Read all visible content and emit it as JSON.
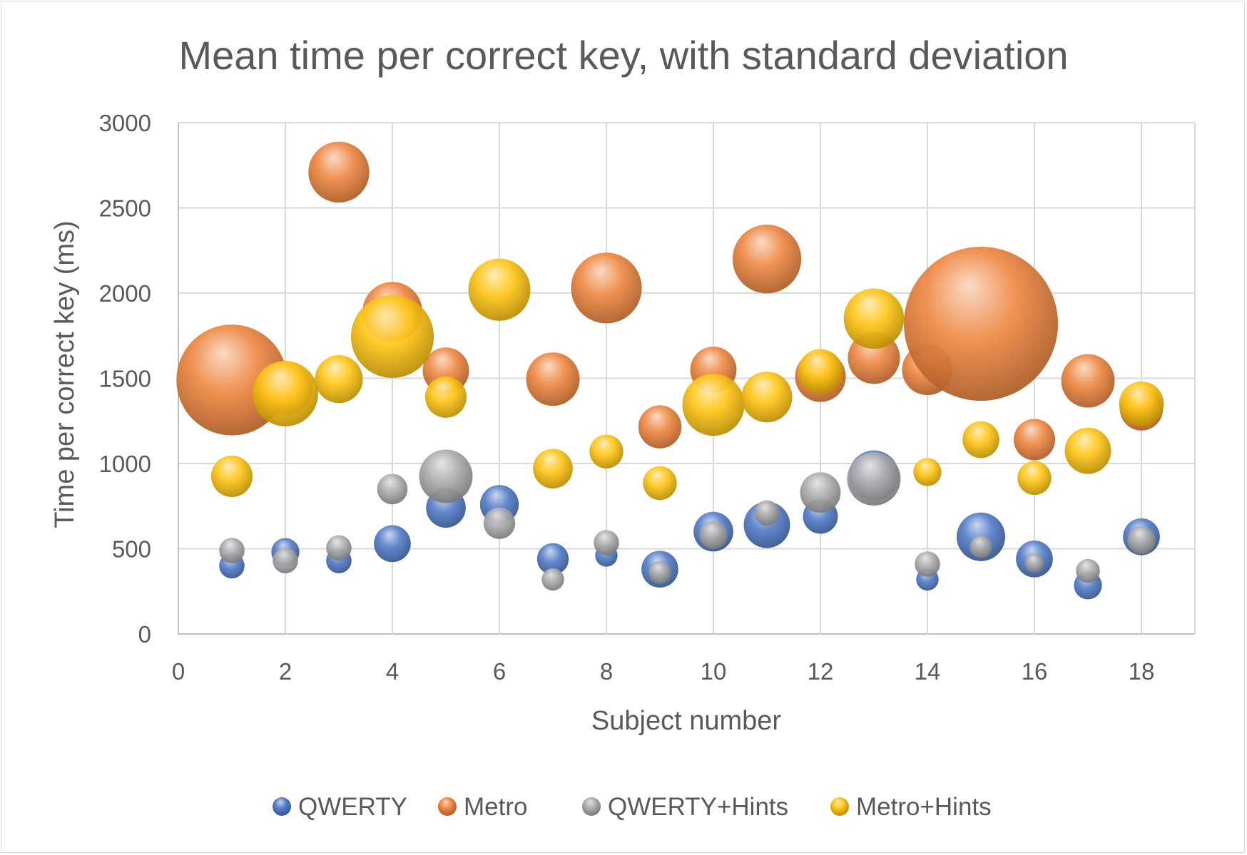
{
  "chart_data": {
    "type": "bubble",
    "title": "Mean time per correct key, with standard deviation",
    "xlabel": "Subject number",
    "ylabel": "Time per correct key (ms)",
    "xlim": [
      0,
      19
    ],
    "ylim": [
      0,
      3000
    ],
    "x_ticks": [
      0,
      2,
      4,
      6,
      8,
      10,
      12,
      14,
      16,
      18
    ],
    "y_ticks": [
      0,
      500,
      1000,
      1500,
      2000,
      2500,
      3000
    ],
    "grid": true,
    "legend_position": "bottom",
    "series": [
      {
        "name": "QWERTY",
        "color": "#4472c4",
        "points": [
          {
            "x": 1,
            "y": 400,
            "sd": 45
          },
          {
            "x": 2,
            "y": 480,
            "sd": 55
          },
          {
            "x": 3,
            "y": 430,
            "sd": 45
          },
          {
            "x": 4,
            "y": 530,
            "sd": 95
          },
          {
            "x": 5,
            "y": 740,
            "sd": 110
          },
          {
            "x": 6,
            "y": 760,
            "sd": 105
          },
          {
            "x": 7,
            "y": 440,
            "sd": 70
          },
          {
            "x": 8,
            "y": 460,
            "sd": 35
          },
          {
            "x": 9,
            "y": 380,
            "sd": 95
          },
          {
            "x": 10,
            "y": 600,
            "sd": 110
          },
          {
            "x": 11,
            "y": 640,
            "sd": 150
          },
          {
            "x": 12,
            "y": 690,
            "sd": 85
          },
          {
            "x": 13,
            "y": 930,
            "sd": 175
          },
          {
            "x": 14,
            "y": 320,
            "sd": 35
          },
          {
            "x": 15,
            "y": 570,
            "sd": 165
          },
          {
            "x": 16,
            "y": 440,
            "sd": 95
          },
          {
            "x": 17,
            "y": 285,
            "sd": 55
          },
          {
            "x": 18,
            "y": 570,
            "sd": 95
          }
        ]
      },
      {
        "name": "Metro",
        "color": "#ed7d31",
        "points": [
          {
            "x": 1,
            "y": 1490,
            "sd": 860
          },
          {
            "x": 2,
            "y": 1440,
            "sd": 200
          },
          {
            "x": 3,
            "y": 2710,
            "sd": 260
          },
          {
            "x": 4,
            "y": 1890,
            "sd": 250
          },
          {
            "x": 5,
            "y": 1545,
            "sd": 150
          },
          {
            "x": 7,
            "y": 1495,
            "sd": 200
          },
          {
            "x": 8,
            "y": 2030,
            "sd": 350
          },
          {
            "x": 9,
            "y": 1215,
            "sd": 130
          },
          {
            "x": 10,
            "y": 1550,
            "sd": 150
          },
          {
            "x": 11,
            "y": 2200,
            "sd": 330
          },
          {
            "x": 12,
            "y": 1510,
            "sd": 180
          },
          {
            "x": 13,
            "y": 1620,
            "sd": 190
          },
          {
            "x": 14,
            "y": 1550,
            "sd": 180
          },
          {
            "x": 15,
            "y": 1820,
            "sd": 1660
          },
          {
            "x": 16,
            "y": 1140,
            "sd": 120
          },
          {
            "x": 17,
            "y": 1485,
            "sd": 200
          },
          {
            "x": 18,
            "y": 1320,
            "sd": 130
          }
        ]
      },
      {
        "name": "QWERTY+Hints",
        "color": "#a5a5a5",
        "points": [
          {
            "x": 1,
            "y": 490,
            "sd": 45
          },
          {
            "x": 2,
            "y": 430,
            "sd": 45
          },
          {
            "x": 3,
            "y": 505,
            "sd": 45
          },
          {
            "x": 4,
            "y": 850,
            "sd": 65
          },
          {
            "x": 5,
            "y": 925,
            "sd": 200
          },
          {
            "x": 6,
            "y": 650,
            "sd": 70
          },
          {
            "x": 7,
            "y": 320,
            "sd": 35
          },
          {
            "x": 8,
            "y": 535,
            "sd": 45
          },
          {
            "x": 9,
            "y": 360,
            "sd": 35
          },
          {
            "x": 10,
            "y": 580,
            "sd": 55
          },
          {
            "x": 11,
            "y": 710,
            "sd": 45
          },
          {
            "x": 12,
            "y": 830,
            "sd": 115
          },
          {
            "x": 13,
            "y": 910,
            "sd": 200
          },
          {
            "x": 14,
            "y": 410,
            "sd": 45
          },
          {
            "x": 15,
            "y": 510,
            "sd": 35
          },
          {
            "x": 16,
            "y": 415,
            "sd": 25
          },
          {
            "x": 17,
            "y": 370,
            "sd": 40
          },
          {
            "x": 18,
            "y": 550,
            "sd": 55
          }
        ]
      },
      {
        "name": "Metro+Hints",
        "color": "#ffc000",
        "points": [
          {
            "x": 1,
            "y": 925,
            "sd": 120
          },
          {
            "x": 2,
            "y": 1410,
            "sd": 300
          },
          {
            "x": 3,
            "y": 1495,
            "sd": 160
          },
          {
            "x": 4,
            "y": 1745,
            "sd": 480
          },
          {
            "x": 5,
            "y": 1390,
            "sd": 120
          },
          {
            "x": 6,
            "y": 2020,
            "sd": 270
          },
          {
            "x": 7,
            "y": 970,
            "sd": 110
          },
          {
            "x": 8,
            "y": 1070,
            "sd": 80
          },
          {
            "x": 9,
            "y": 885,
            "sd": 80
          },
          {
            "x": 10,
            "y": 1345,
            "sd": 270
          },
          {
            "x": 11,
            "y": 1390,
            "sd": 180
          },
          {
            "x": 12,
            "y": 1540,
            "sd": 140
          },
          {
            "x": 13,
            "y": 1850,
            "sd": 255
          },
          {
            "x": 14,
            "y": 950,
            "sd": 55
          },
          {
            "x": 15,
            "y": 1140,
            "sd": 95
          },
          {
            "x": 16,
            "y": 915,
            "sd": 80
          },
          {
            "x": 17,
            "y": 1075,
            "sd": 150
          },
          {
            "x": 18,
            "y": 1350,
            "sd": 140
          }
        ]
      }
    ]
  }
}
